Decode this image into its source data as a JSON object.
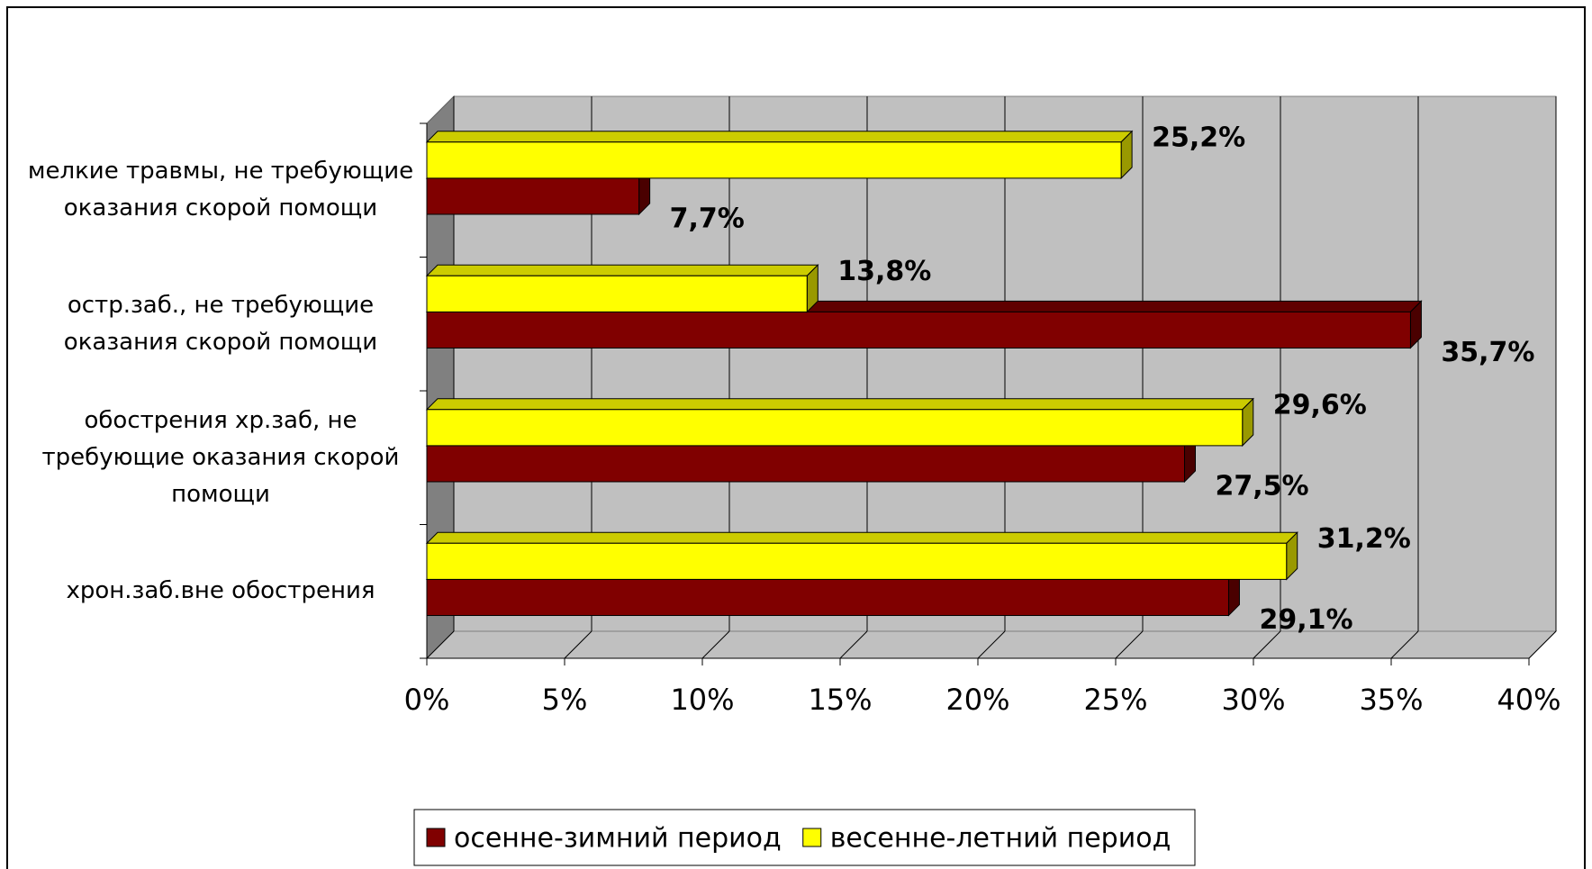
{
  "chart_data": {
    "type": "bar3d",
    "categories": [
      "мелкие травмы, не требующие оказания скорой помощи",
      "остр.заб., не требующие оказания скорой помощи",
      "обострения хр.заб, не требующие оказания скорой помощи",
      "хрон.заб.вне обострения"
    ],
    "series": [
      {
        "name": "осенне-зимний период",
        "color": "#800000",
        "values": [
          7.7,
          35.7,
          27.5,
          29.1
        ],
        "value_labels": [
          "7,7%",
          "35,7%",
          "27,5%",
          "29,1%"
        ]
      },
      {
        "name": "весенне-летний период",
        "color": "#ffff00",
        "values": [
          25.2,
          13.8,
          29.6,
          31.2
        ],
        "value_labels": [
          "25,2%",
          "13,8%",
          "29,6%",
          "31,2%"
        ]
      }
    ],
    "xlim": [
      0,
      40
    ],
    "xticks": [
      {
        "value": 0,
        "label": "0%"
      },
      {
        "value": 5,
        "label": "5%"
      },
      {
        "value": 10,
        "label": "10%"
      },
      {
        "value": 15,
        "label": "15%"
      },
      {
        "value": 20,
        "label": "20%"
      },
      {
        "value": 25,
        "label": "25%"
      },
      {
        "value": 30,
        "label": "30%"
      },
      {
        "value": 35,
        "label": "35%"
      },
      {
        "value": 40,
        "label": "40%"
      }
    ],
    "grid": true,
    "legend": "bottom"
  }
}
